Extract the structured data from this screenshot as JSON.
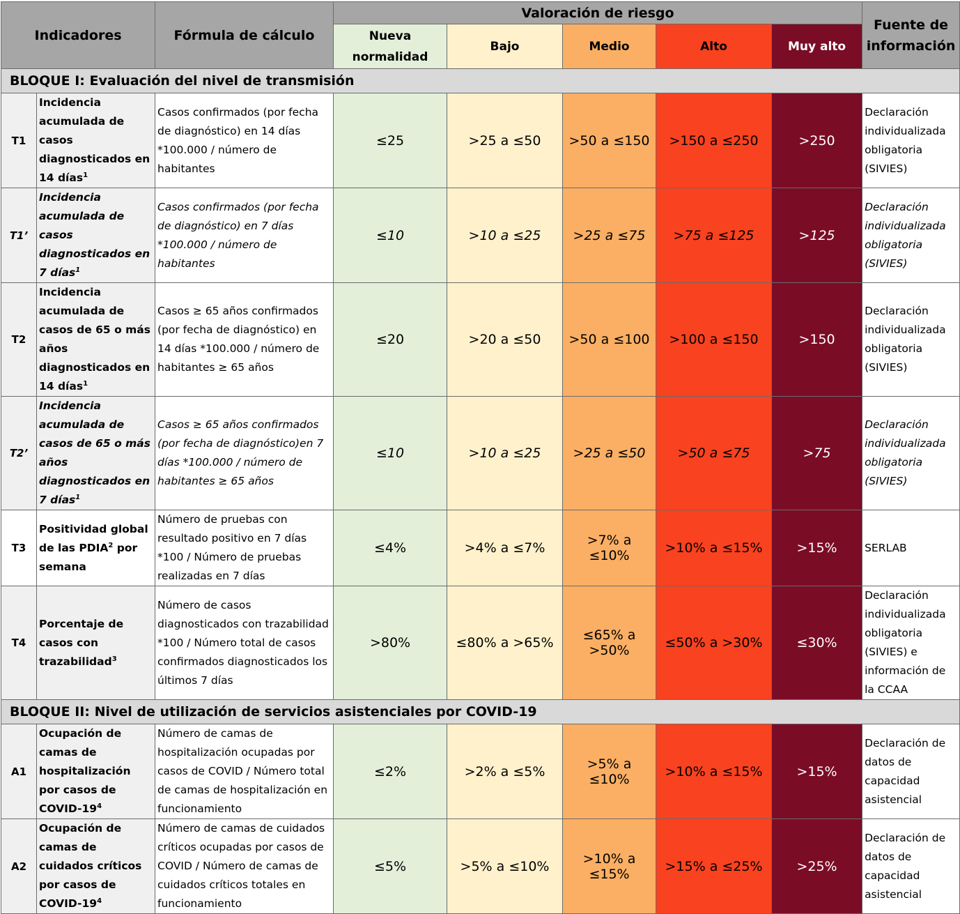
{
  "header": {
    "indicadores": "Indicadores",
    "formula": "Fórmula de cálculo",
    "valoracion": "Valoración de riesgo",
    "fuente": "Fuente de información",
    "levels": [
      "Nueva normalidad",
      "Bajo",
      "Medio",
      "Alto",
      "Muy alto"
    ]
  },
  "colors": {
    "nueva": "#e3efd9",
    "bajo": "#fff1cc",
    "medio": "#fbaf64",
    "alto": "#f9421f",
    "muy_alto": "#7b0c26",
    "header_bg": "#a6a6a6",
    "block_bg": "#d9d9d9"
  },
  "blocks": [
    {
      "title": "BLOQUE I: Evaluación del nivel de transmisión",
      "rows": [
        {
          "code": "T1",
          "indicator": "Incidencia acumulada de casos diagnosticados en 14 días",
          "sup": "1",
          "formula": "Casos confirmados (por fecha de diagnóstico) en 14 días *100.000 / número de habitantes",
          "values": [
            "≤25",
            ">25 a ≤50",
            ">50 a ≤150",
            ">150 a ≤250",
            ">250"
          ],
          "source": "Declaración individualizada obligatoria (SIVIES)"
        },
        {
          "code": "T1’",
          "indicator": "Incidencia acumulada de casos diagnosticados en 7 días",
          "sup": "1",
          "formula": "Casos confirmados (por fecha de diagnóstico) en 7 días *100.000 / número de habitantes",
          "values": [
            "≤10",
            ">10 a ≤25",
            ">25 a ≤75",
            ">75 a ≤125",
            ">125"
          ],
          "source": "Declaración individualizada obligatoria (SIVIES)"
        },
        {
          "code": "T2",
          "indicator": "Incidencia acumulada de casos de 65 o más años diagnosticados en 14 días",
          "sup": "1",
          "formula": "Casos ≥ 65  años confirmados (por fecha de diagnóstico) en 14 días *100.000 / número de habitantes ≥ 65 años",
          "values": [
            "≤20",
            ">20 a ≤50",
            ">50 a ≤100",
            ">100 a ≤150",
            ">150"
          ],
          "source": "Declaración individualizada obligatoria (SIVIES)"
        },
        {
          "code": "T2’",
          "indicator": "Incidencia acumulada de casos de 65 o  más  años diagnosticados en 7 días",
          "sup": "1",
          "formula": "Casos ≥ 65 años confirmados (por fecha de diagnóstico)en 7 días  *100.000 / número de habitantes ≥ 65  años",
          "values": [
            "≤10",
            ">10 a ≤25",
            ">25 a ≤50",
            ">50 a ≤75",
            ">75"
          ],
          "source": "Declaración individualizada obligatoria (SIVIES)"
        },
        {
          "code": "T3",
          "indicator_a": "Positividad global de las PDIA",
          "sup": "2",
          "indicator_b": " por semana",
          "formula": "Número de pruebas con resultado positivo en 7 días *100 / Número de pruebas realizadas en 7 días",
          "values": [
            "≤4%",
            ">4% a ≤7%",
            ">7% a ≤10%",
            ">10% a ≤15%",
            ">15%"
          ],
          "source": "SERLAB"
        },
        {
          "code": "T4",
          "indicator": "Porcentaje de casos con trazabilidad",
          "sup": "3",
          "formula": "Número de casos diagnosticados con trazabilidad *100 / Número total de casos confirmados diagnosticados los últimos 7 días",
          "values": [
            ">80%",
            "≤80% a >65%",
            "≤65% a >50%",
            "≤50% a >30%",
            "≤30%"
          ],
          "source": "Declaración individualizada obligatoria (SIVIES) e información de la CCAA"
        }
      ]
    },
    {
      "title": "BLOQUE II: Nivel de utilización de servicios asistenciales por COVID-19",
      "rows": [
        {
          "code": "A1",
          "indicator": "Ocupación de camas de hospitalización por casos de COVID-19",
          "sup": "4",
          "formula": "Número de camas de hospitalización ocupadas por casos de COVID / Número total de camas de hospitalización en funcionamiento",
          "values": [
            "≤2%",
            ">2% a ≤5%",
            ">5% a ≤10%",
            ">10% a ≤15%",
            ">15%"
          ],
          "source": "Declaración de datos de capacidad asistencial"
        },
        {
          "code": "A2",
          "indicator": "Ocupación de camas de cuidados críticos por casos de COVID-19",
          "sup": "4",
          "formula": "Número de camas de cuidados críticos ocupadas por casos de COVID / Número de camas de cuidados críticos totales en funcionamiento",
          "values": [
            "≤5%",
            ">5% a ≤10%",
            ">10% a ≤15%",
            ">15% a ≤25%",
            ">25%"
          ],
          "source": "Declaración de datos de capacidad asistencial"
        }
      ]
    }
  ]
}
